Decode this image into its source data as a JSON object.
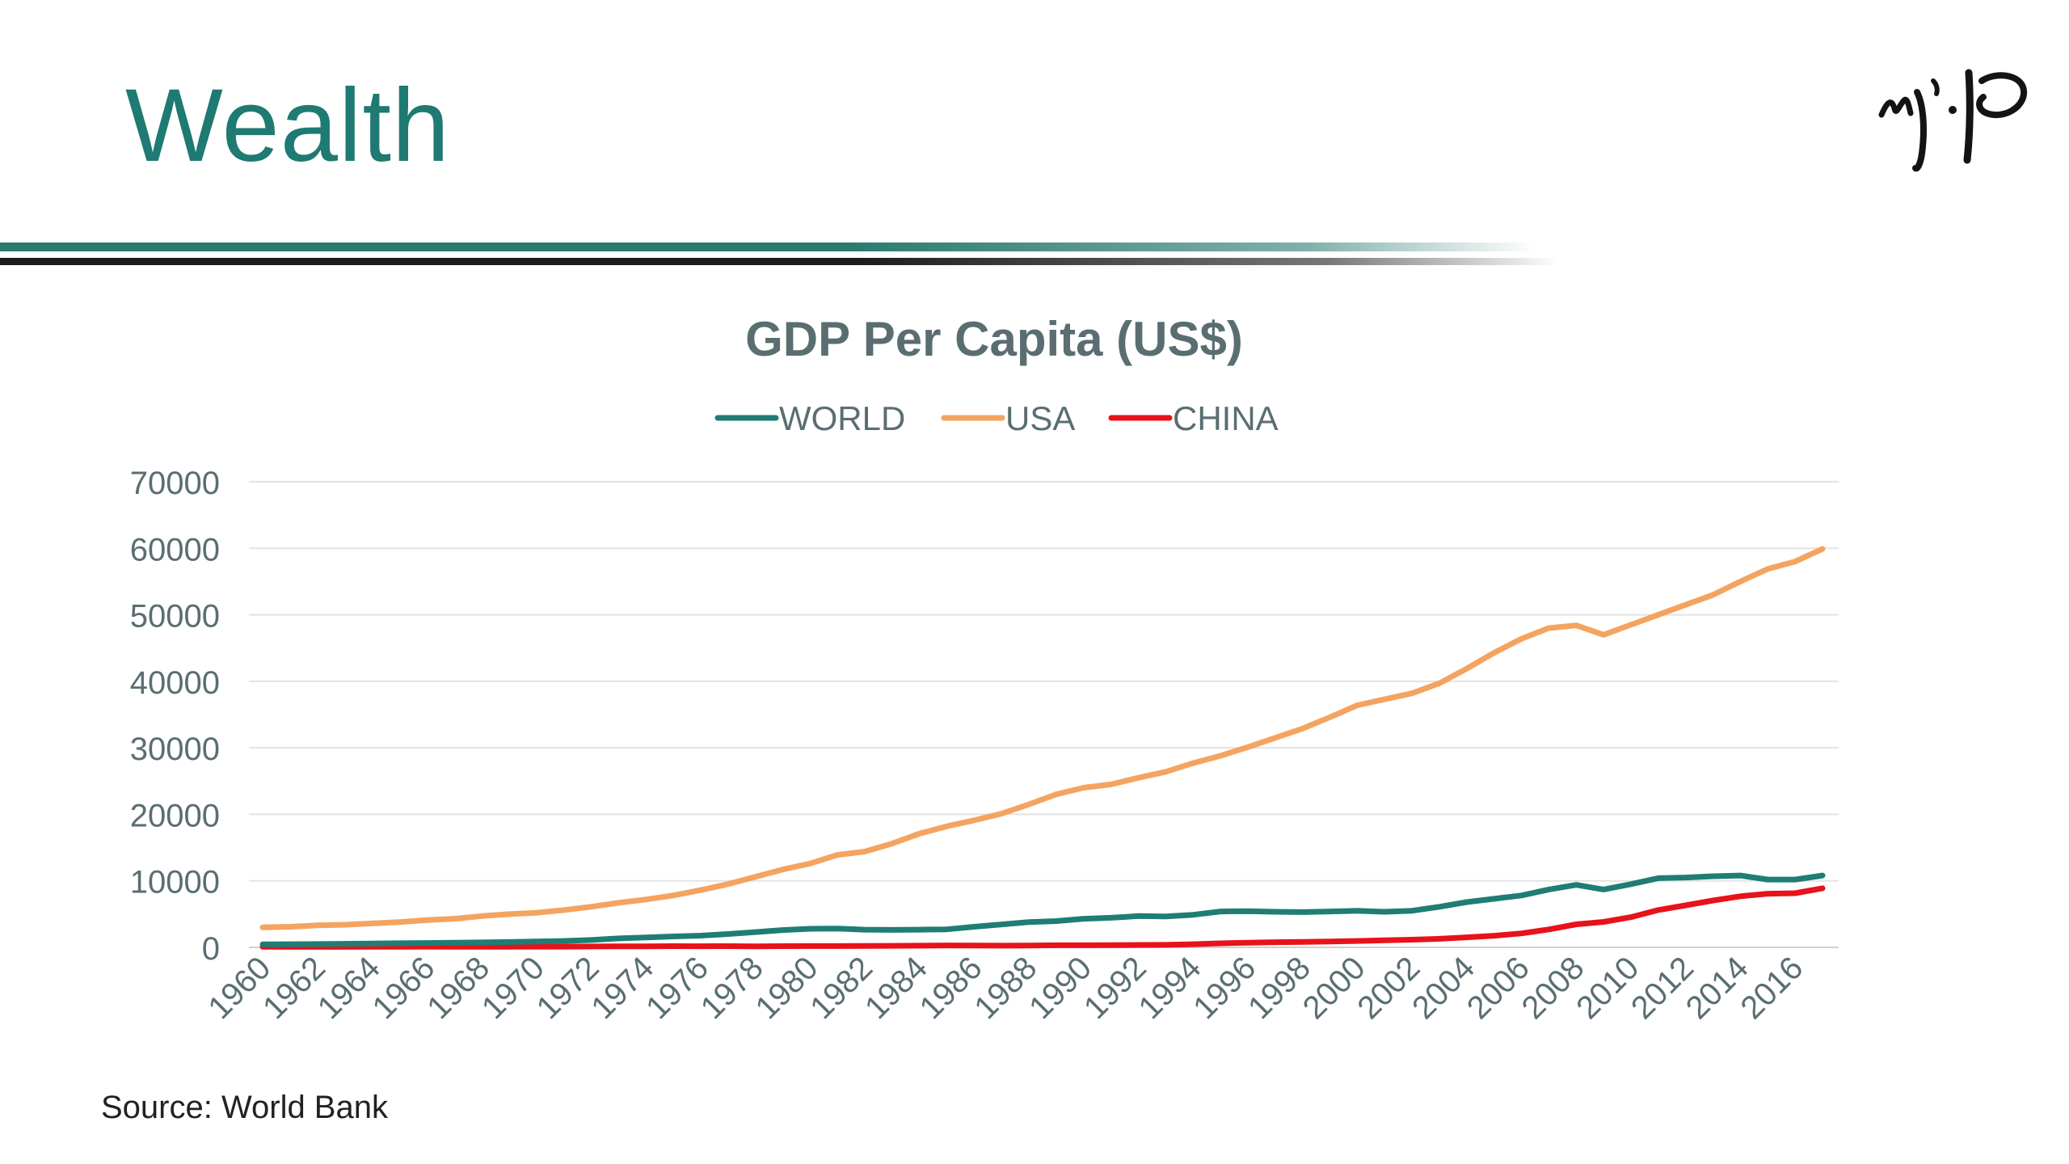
{
  "slide": {
    "title": "Wealth",
    "source": "Source: World Bank"
  },
  "logo": {
    "description_icon": "calligraphy-logo-icon"
  },
  "colors": {
    "title": "#1e7a72",
    "world": "#1f7d74",
    "usa": "#f4a460",
    "china": "#e8121a",
    "axis_text": "#5a6e72",
    "chart_title": "#5a6e72",
    "grid": "#e3e3e3"
  },
  "chart_data": {
    "type": "line",
    "title": "GDP Per Capita (US$)",
    "xlabel": "",
    "ylabel": "",
    "ylim": [
      0,
      70000
    ],
    "yticks": [
      0,
      10000,
      20000,
      30000,
      40000,
      50000,
      60000,
      70000
    ],
    "grid": true,
    "legend_position": "top",
    "x": [
      1960,
      1961,
      1962,
      1963,
      1964,
      1965,
      1966,
      1967,
      1968,
      1969,
      1970,
      1971,
      1972,
      1973,
      1974,
      1975,
      1976,
      1977,
      1978,
      1979,
      1980,
      1981,
      1982,
      1983,
      1984,
      1985,
      1986,
      1987,
      1988,
      1989,
      1990,
      1991,
      1992,
      1993,
      1994,
      1995,
      1996,
      1997,
      1998,
      1999,
      2000,
      2001,
      2002,
      2003,
      2004,
      2005,
      2006,
      2007,
      2008,
      2009,
      2010,
      2011,
      2012,
      2013,
      2014,
      2015,
      2016,
      2017
    ],
    "xtick_labels": [
      "1960",
      "1962",
      "1964",
      "1966",
      "1968",
      "1970",
      "1972",
      "1974",
      "1976",
      "1978",
      "1980",
      "1982",
      "1984",
      "1986",
      "1988",
      "1990",
      "1992",
      "1994",
      "1996",
      "1998",
      "2000",
      "2002",
      "2004",
      "2006",
      "2008",
      "2010",
      "2012",
      "2014",
      "2016"
    ],
    "series": [
      {
        "name": "WORLD",
        "color": "#1f7d74",
        "values": [
          450,
          470,
          500,
          530,
          580,
          620,
          660,
          700,
          740,
          800,
          870,
          960,
          1100,
          1350,
          1500,
          1640,
          1760,
          2000,
          2300,
          2600,
          2800,
          2820,
          2660,
          2620,
          2660,
          2710,
          3100,
          3450,
          3800,
          3950,
          4300,
          4450,
          4700,
          4650,
          4900,
          5400,
          5450,
          5350,
          5300,
          5400,
          5500,
          5350,
          5500,
          6100,
          6800,
          7300,
          7800,
          8700,
          9400,
          8700,
          9500,
          10400,
          10500,
          10700,
          10800,
          10200,
          10200,
          10800
        ]
      },
      {
        "name": "USA",
        "color": "#f4a460",
        "values": [
          3000,
          3100,
          3300,
          3400,
          3600,
          3800,
          4100,
          4300,
          4700,
          5000,
          5200,
          5600,
          6100,
          6700,
          7200,
          7800,
          8600,
          9500,
          10600,
          11700,
          12600,
          13900,
          14400,
          15600,
          17100,
          18200,
          19100,
          20100,
          21500,
          23000,
          24000,
          24500,
          25500,
          26400,
          27700,
          28800,
          30100,
          31500,
          32900,
          34600,
          36400,
          37300,
          38200,
          39700,
          41900,
          44300,
          46400,
          48000,
          48400,
          47000,
          48500,
          50000,
          51500,
          53000,
          55000,
          56900,
          58000,
          59900
        ]
      },
      {
        "name": "CHINA",
        "color": "#e8121a",
        "values": [
          90,
          75,
          70,
          75,
          85,
          100,
          105,
          95,
          90,
          100,
          110,
          115,
          130,
          155,
          160,
          180,
          165,
          185,
          155,
          185,
          195,
          197,
          203,
          225,
          250,
          294,
          281,
          252,
          283,
          311,
          318,
          333,
          366,
          377,
          473,
          610,
          709,
          782,
          829,
          873,
          959,
          1053,
          1149,
          1289,
          1509,
          1753,
          2099,
          2694,
          3468,
          3832,
          4550,
          5618,
          6317,
          7051,
          7679,
          8067,
          8148,
          8880
        ]
      }
    ]
  }
}
